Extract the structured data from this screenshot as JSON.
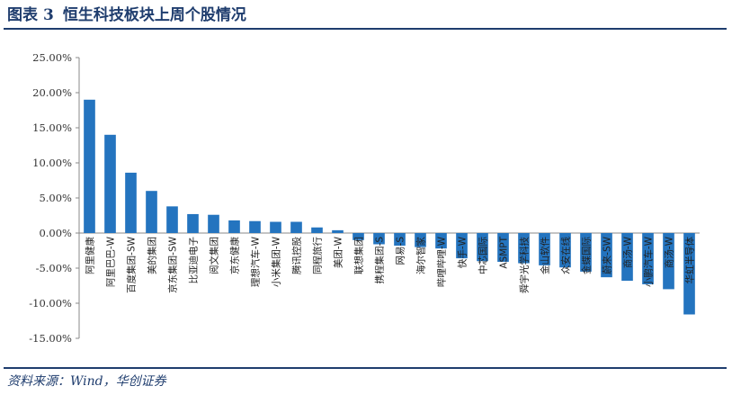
{
  "header": {
    "figure_label": "图表",
    "figure_number": "3",
    "title": "恒生科技板块上周个股情况"
  },
  "footer": {
    "source": "资料来源：Wind，华创证券"
  },
  "colors": {
    "bar": "#2474bf",
    "rule": "#1f3d6e",
    "axis": "#888888"
  },
  "chart_data": {
    "type": "bar",
    "categories": [
      "阿里健康",
      "阿里巴巴-W",
      "百度集团-SW",
      "美的集团",
      "京东集团-SW",
      "比亚迪电子",
      "阅文集团",
      "京东健康",
      "理想汽车-W",
      "小米集团-W",
      "腾讯控股",
      "同程旅行",
      "美团-W",
      "联想集团",
      "携程集团-S",
      "网易-S",
      "海尔智家",
      "哔哩哔哩-W",
      "快手-W",
      "中芯国际",
      "ASMPT",
      "舜宇光学科技",
      "金山软件",
      "众安在线",
      "金蝶国际",
      "蔚来-SW",
      "商汤-W",
      "小鹏汽车-W",
      "商汤-W",
      "华虹半导体"
    ],
    "values": [
      19.0,
      14.0,
      8.6,
      6.0,
      3.8,
      2.7,
      2.6,
      1.8,
      1.7,
      1.6,
      1.6,
      0.8,
      0.4,
      -1.0,
      -1.6,
      -1.8,
      -2.0,
      -2.2,
      -3.6,
      -4.0,
      -4.1,
      -4.3,
      -4.6,
      -4.9,
      -5.5,
      -6.3,
      -6.8,
      -7.3,
      -8.0,
      -11.6
    ],
    "ylim": [
      -15,
      25
    ],
    "yticks": [
      "25.00%",
      "20.00%",
      "15.00%",
      "10.00%",
      "5.00%",
      "0.00%",
      "-5.00%",
      "-10.00%",
      "-15.00%"
    ],
    "ytick_values": [
      25,
      20,
      15,
      10,
      5,
      0,
      -5,
      -10,
      -15
    ],
    "grid": false,
    "legend": "none"
  }
}
